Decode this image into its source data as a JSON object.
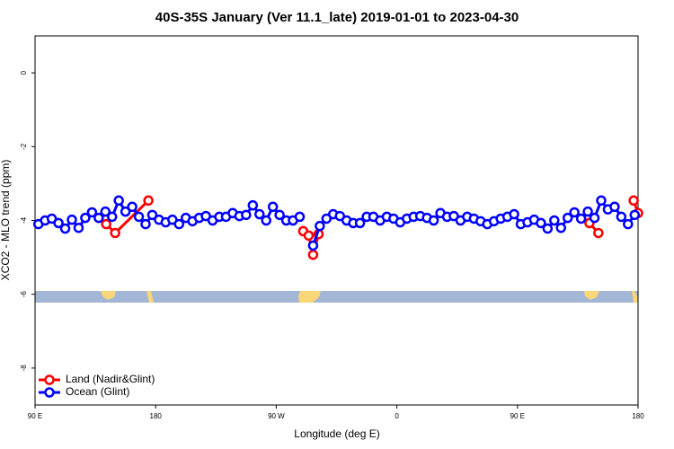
{
  "chart_data": {
    "type": "line",
    "title": "40S-35S January (Ver 11.1_late)   2019-01-01 to 2023-04-30",
    "x_label": "Longitude (deg E)",
    "y_label": "XCO2 - MLO trend (ppm)",
    "xlim": [
      90,
      540
    ],
    "ylim": [
      -9,
      1
    ],
    "xticks": [
      {
        "value": 90,
        "label": "90 E"
      },
      {
        "value": 180,
        "label": "180"
      },
      {
        "value": 270,
        "label": "90 W"
      },
      {
        "value": 360,
        "label": "0"
      },
      {
        "value": 450,
        "label": "90 E"
      },
      {
        "value": 540,
        "label": "180"
      }
    ],
    "yticks": [
      0,
      -2,
      -4,
      -6,
      -8
    ],
    "legend": "bottom-left",
    "series": [
      {
        "name": "Land (Nadir&Glint)",
        "color": "#ff0000",
        "x": [
          143.1,
          149.8,
          174.6,
          null,
          290.1,
          294.2,
          297.5,
          301.6,
          null,
          503.7,
          510.4,
          null,
          536.7,
          540.0
        ],
        "values": [
          -4.1,
          -4.34,
          -3.46,
          null,
          -4.29,
          -4.41,
          -4.93,
          -4.37,
          null,
          -4.07,
          -4.34,
          null,
          -3.46,
          -3.8
        ]
      },
      {
        "name": "Ocean (Glint)",
        "color": "#0000ff",
        "x": [
          92.5,
          97.5,
          102.5,
          107.5,
          112.5,
          117.5,
          122.5,
          127.5,
          132.5,
          137.5,
          142.5,
          147.5,
          152.5,
          157.5,
          162.5,
          167.5,
          172.5,
          177.5,
          182.5,
          187.5,
          192.5,
          197.5,
          202.5,
          207.5,
          212.5,
          217.5,
          222.5,
          227.5,
          232.5,
          237.5,
          242.5,
          247.5,
          252.5,
          257.5,
          262.5,
          267.5,
          272.5,
          277.5,
          282.5,
          287.5,
          292.5,
          297.5,
          302.5,
          307.5,
          312.5,
          317.5,
          322.5,
          327.5,
          332.5,
          337.5,
          342.5,
          347.5,
          352.5,
          357.5,
          362.5,
          367.5,
          372.5,
          377.5,
          382.5,
          387.5,
          392.5,
          397.5,
          402.5,
          407.5,
          412.5,
          417.5,
          422.5,
          427.5,
          432.5,
          437.5,
          442.5,
          447.5,
          452.5,
          457.5,
          462.5,
          467.5,
          472.5,
          477.5,
          482.5,
          487.5,
          492.5,
          497.5,
          502.5,
          507.5,
          512.5,
          517.5,
          522.5,
          527.5,
          532.5,
          537.5
        ],
        "values": [
          -4.1,
          -4.0,
          -3.95,
          -4.07,
          -4.22,
          -3.98,
          -4.2,
          -3.93,
          -3.78,
          -3.93,
          -3.76,
          -3.9,
          -3.46,
          -3.76,
          -3.63,
          -3.9,
          -4.1,
          -3.85,
          -3.98,
          -4.05,
          -3.98,
          -4.1,
          -3.93,
          -4.02,
          -3.93,
          -3.88,
          -4.0,
          -3.9,
          -3.9,
          -3.8,
          -3.88,
          -3.85,
          -3.59,
          -3.83,
          -4.0,
          -3.63,
          -3.85,
          -4.0,
          -4.0,
          -3.9,
          null,
          -4.68,
          -4.15,
          -3.95,
          -3.83,
          -3.88,
          -4.0,
          -4.07,
          -4.07,
          -3.9,
          -3.9,
          -4.0,
          -3.9,
          -3.95,
          -4.05,
          -3.95,
          -3.9,
          -3.88,
          -3.93,
          -4.0,
          -3.8,
          -3.9,
          -3.88,
          -4.0,
          -3.9,
          -3.95,
          -4.02,
          -4.1,
          -4.02,
          -3.95,
          -3.9,
          -3.83,
          -4.1,
          -4.05,
          -3.98,
          -4.07,
          -4.22,
          -4.0,
          -4.2,
          -3.93,
          -3.78,
          -3.95,
          -3.76,
          -3.93,
          -3.46,
          -3.7,
          -3.63,
          -3.9,
          -4.1,
          -3.85
        ]
      }
    ]
  }
}
